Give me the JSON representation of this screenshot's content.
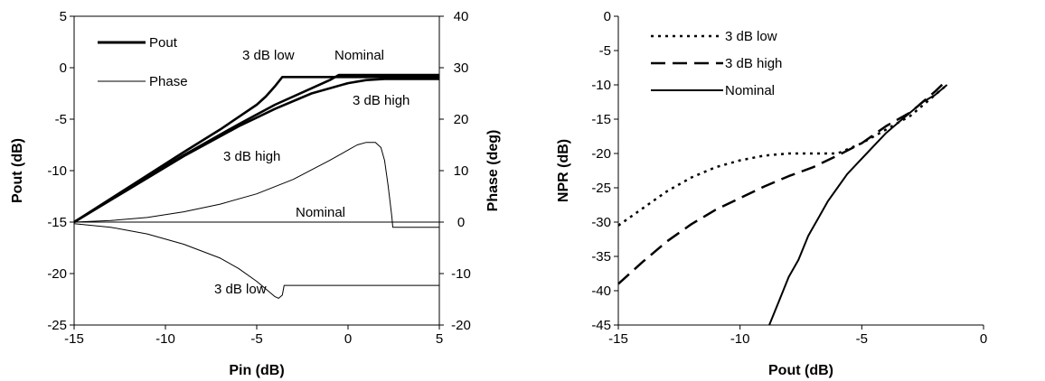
{
  "chart_data": [
    {
      "type": "line",
      "xlabel": "Pin (dB)",
      "ylabel": "Pout (dB)",
      "y2label": "Phase (deg)",
      "xlim": [
        -15,
        5
      ],
      "ylim": [
        -25,
        5
      ],
      "y2lim": [
        -20,
        40
      ],
      "xticks": [
        "-15",
        "-10",
        "-5",
        "0",
        "5"
      ],
      "yticks": [
        "5",
        "0",
        "-5",
        "-10",
        "-15",
        "-20",
        "-25"
      ],
      "y2ticks": [
        "40",
        "30",
        "20",
        "10",
        "0",
        "-10",
        "-20"
      ],
      "legend_position": "top-left",
      "legend": [
        {
          "label": "Pout",
          "style": "thick"
        },
        {
          "label": "Phase",
          "style": "thin"
        }
      ],
      "annotations": [
        {
          "text": "3 dB low",
          "x": -9.3,
          "y": 2.7
        },
        {
          "text": "Nominal",
          "x": -1.3,
          "y": 2.7
        },
        {
          "text": "3 dB high",
          "x": 0.3,
          "y": -1.8
        },
        {
          "text": "3 dB high",
          "x": -8.8,
          "y": -10.6
        },
        {
          "text": "Nominal",
          "x": -2.8,
          "y": -14.3
        },
        {
          "text": "3 dB low",
          "x": -7.3,
          "y": -21.3
        }
      ],
      "series": [
        {
          "name": "3 dB low",
          "axis": "y",
          "style": "thick",
          "x": [
            -15,
            -12,
            -9,
            -7,
            -5,
            -4.5,
            -4,
            -3.6,
            -3,
            0,
            2,
            5
          ],
          "y": [
            -15,
            -11.6,
            -8.2,
            -6,
            -3.6,
            -2.8,
            -1.8,
            -0.9,
            -0.9,
            -0.9,
            -0.9,
            -0.9
          ]
        },
        {
          "name": "Nominal",
          "axis": "y",
          "style": "thick",
          "x": [
            -15,
            -12,
            -9,
            -6,
            -4,
            -2,
            -1,
            -0.5,
            0,
            2,
            5
          ],
          "y": [
            -15,
            -11.7,
            -8.5,
            -5.5,
            -3.6,
            -2,
            -1.2,
            -0.7,
            -0.7,
            -0.7,
            -0.7
          ]
        },
        {
          "name": "3 dB high",
          "axis": "y",
          "style": "thick",
          "x": [
            -15,
            -12,
            -9,
            -6,
            -4,
            -2,
            0,
            1,
            2,
            3,
            5
          ],
          "y": [
            -15,
            -11.8,
            -8.6,
            -5.7,
            -4,
            -2.5,
            -1.5,
            -1.2,
            -1.1,
            -1.1,
            -1.1
          ]
        },
        {
          "name": "3 dB high",
          "axis": "y2",
          "style": "thin",
          "x": [
            -15,
            -13,
            -11,
            -9,
            -7,
            -5,
            -3,
            -1,
            0,
            0.5,
            1,
            1.5,
            1.8,
            2,
            2.2,
            2.4,
            2.45,
            5
          ],
          "y": [
            0,
            0.3,
            0.9,
            2,
            3.5,
            5.5,
            8.3,
            12,
            14,
            15,
            15.5,
            15.5,
            14.5,
            12,
            7,
            1,
            -1,
            -1
          ]
        },
        {
          "name": "Nominal",
          "axis": "y2",
          "style": "thin",
          "x": [
            -15,
            5
          ],
          "y": [
            0,
            0
          ]
        },
        {
          "name": "3 dB low",
          "axis": "y2",
          "style": "thin",
          "x": [
            -15,
            -13,
            -11,
            -9,
            -7,
            -6,
            -5,
            -4.5,
            -4,
            -3.8,
            -3.6,
            -3.5,
            5
          ],
          "y": [
            -0.3,
            -1,
            -2.3,
            -4.3,
            -7,
            -9,
            -11.5,
            -13,
            -14.5,
            -14.8,
            -14.2,
            -12.3,
            -12.3
          ]
        }
      ]
    },
    {
      "type": "line",
      "xlabel": "Pout (dB)",
      "ylabel": "NPR (dB)",
      "xlim": [
        -15,
        0
      ],
      "ylim": [
        -45,
        0
      ],
      "xticks": [
        "-15",
        "-10",
        "-5",
        "0"
      ],
      "yticks": [
        "0",
        "-5",
        "-10",
        "-15",
        "-20",
        "-25",
        "-30",
        "-35",
        "-40",
        "-45"
      ],
      "legend_position": "top-left",
      "series": [
        {
          "name": "3 dB low",
          "style": "dotted",
          "x": [
            -15,
            -14,
            -13,
            -12,
            -11,
            -10,
            -9,
            -8,
            -7,
            -6,
            -5,
            -4,
            -3,
            -2,
            -1.5
          ],
          "y": [
            -30.5,
            -28,
            -25.5,
            -23.5,
            -22,
            -21,
            -20.3,
            -20,
            -20,
            -20,
            -18.5,
            -16.5,
            -14.5,
            -11.5,
            -10
          ]
        },
        {
          "name": "3 dB high",
          "style": "dashed",
          "x": [
            -15,
            -14,
            -13,
            -12,
            -11,
            -10,
            -9,
            -8,
            -7,
            -6,
            -5,
            -4,
            -3,
            -2,
            -1.5
          ],
          "y": [
            -39,
            -35.8,
            -32.8,
            -30.3,
            -28.2,
            -26.5,
            -24.8,
            -23.3,
            -22,
            -20.3,
            -18.5,
            -16,
            -14,
            -11,
            -9.3
          ]
        },
        {
          "name": "Nominal",
          "style": "solid",
          "x": [
            -8.8,
            -8.4,
            -8,
            -7.6,
            -7.2,
            -6.8,
            -6.4,
            -6,
            -5.6,
            -5.2,
            -4.8,
            -4.4,
            -4,
            -3.5,
            -3,
            -2.5,
            -2,
            -1.5
          ],
          "y": [
            -45,
            -41.5,
            -38,
            -35.5,
            -32,
            -29.5,
            -27,
            -25,
            -23,
            -21.5,
            -20,
            -18.5,
            -17,
            -15.5,
            -14,
            -12.5,
            -11.5,
            -10
          ]
        }
      ]
    }
  ]
}
